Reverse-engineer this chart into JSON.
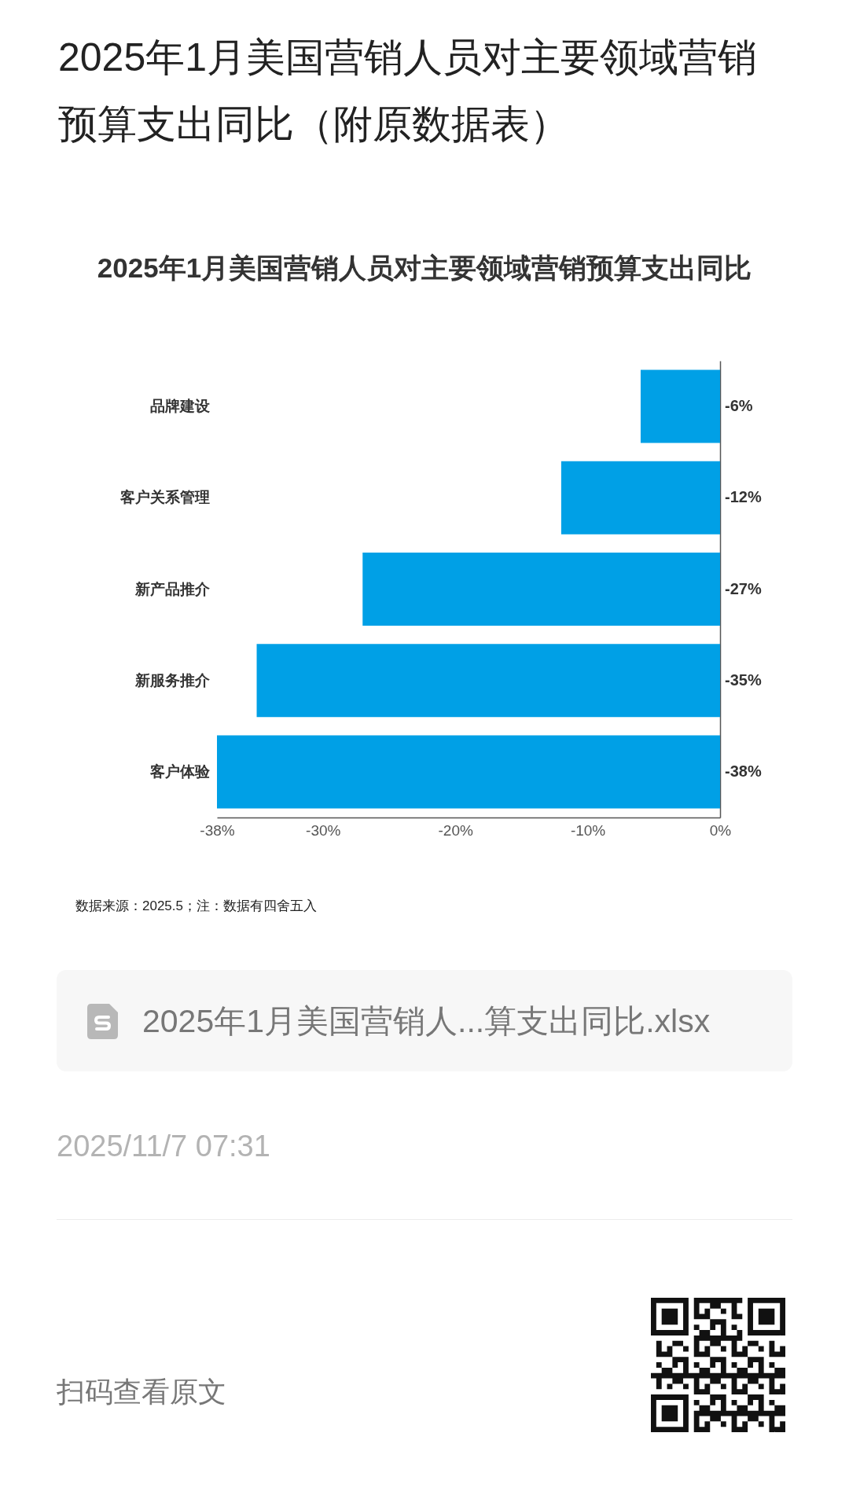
{
  "chart_data": {
    "type": "bar",
    "orientation": "horizontal",
    "title": "2025年1月美国营销人员对主要领域营销预算支出同比（附原数据表）",
    "subtitle": "2025年1月美国营销人员对主要领域营销预算支出同比",
    "categories": [
      "品牌建设",
      "客户关系管理",
      "新产品推介",
      "新服务推介",
      "客户体验"
    ],
    "values": [
      -6,
      -12,
      -27,
      -35,
      -38
    ],
    "color": "#00a0e6",
    "value_labels": [
      "-6%",
      "-12%",
      "-27%",
      "-35%",
      "-38%"
    ],
    "xlim": [
      -38,
      0
    ],
    "xticks": [
      {
        "value": -38,
        "label": "-38%"
      },
      {
        "value": -30,
        "label": "-30%"
      },
      {
        "value": -20,
        "label": "-20%"
      },
      {
        "value": -10,
        "label": "-10%"
      },
      {
        "value": 0,
        "label": "0%"
      }
    ],
    "annotations": [
      "数据来源：2025.5；注：数据有四舍五入",
      "2025年1月美国营销人...算支出同比.xlsx",
      "2025/11/7 07:31",
      "扫码查看原文"
    ]
  }
}
